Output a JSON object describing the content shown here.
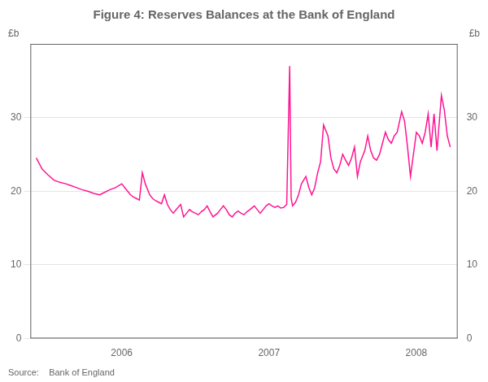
{
  "chart_data": {
    "type": "line",
    "title": "Figure 4: Reserves Balances at the Bank of England",
    "source": "Source:    Bank of England",
    "ylabel": "£b",
    "y2label": "£b",
    "color": "#FF1493",
    "grid": true,
    "xlim": [
      2005.38,
      2008.28
    ],
    "xticks": [
      2006.0,
      2007.0,
      2008.0
    ],
    "ylim": [
      0,
      40
    ],
    "yticks": [
      0,
      10,
      20,
      30
    ],
    "y2lim": [
      0,
      40
    ],
    "y2ticks": [
      0,
      10,
      20,
      30
    ],
    "x": [
      2005.42,
      2005.46,
      2005.5,
      2005.54,
      2005.58,
      2005.62,
      2005.65,
      2005.69,
      2005.73,
      2005.77,
      2005.81,
      2005.85,
      2005.88,
      2005.92,
      2005.96,
      2006.0,
      2006.02,
      2006.04,
      2006.06,
      2006.08,
      2006.1,
      2006.12,
      2006.14,
      2006.16,
      2006.19,
      2006.21,
      2006.23,
      2006.25,
      2006.27,
      2006.29,
      2006.31,
      2006.33,
      2006.35,
      2006.37,
      2006.4,
      2006.42,
      2006.44,
      2006.46,
      2006.48,
      2006.5,
      2006.52,
      2006.54,
      2006.56,
      2006.58,
      2006.6,
      2006.62,
      2006.65,
      2006.67,
      2006.69,
      2006.71,
      2006.73,
      2006.75,
      2006.77,
      2006.79,
      2006.81,
      2006.83,
      2006.85,
      2006.87,
      2006.9,
      2006.92,
      2006.94,
      2006.96,
      2006.98,
      2007.0,
      2007.02,
      2007.04,
      2007.06,
      2007.08,
      2007.1,
      2007.12,
      2007.14,
      2007.15,
      2007.16,
      2007.18,
      2007.2,
      2007.22,
      2007.25,
      2007.27,
      2007.29,
      2007.31,
      2007.33,
      2007.35,
      2007.37,
      2007.4,
      2007.42,
      2007.44,
      2007.46,
      2007.48,
      2007.5,
      2007.52,
      2007.54,
      2007.56,
      2007.58,
      2007.6,
      2007.62,
      2007.65,
      2007.67,
      2007.69,
      2007.71,
      2007.73,
      2007.75,
      2007.77,
      2007.79,
      2007.81,
      2007.83,
      2007.85,
      2007.87,
      2007.9,
      2007.92,
      2007.94,
      2007.96,
      2007.98,
      2008.0,
      2008.02,
      2008.04,
      2008.06,
      2008.08,
      2008.1,
      2008.12,
      2008.14,
      2008.15,
      2008.17,
      2008.19,
      2008.21,
      2008.23
    ],
    "values": [
      24.5,
      23.0,
      22.2,
      21.5,
      21.2,
      21.0,
      20.8,
      20.5,
      20.2,
      20.0,
      19.7,
      19.5,
      19.8,
      20.2,
      20.5,
      21.0,
      20.5,
      20.0,
      19.5,
      19.2,
      19.0,
      18.8,
      22.5,
      21.0,
      19.5,
      19.0,
      18.7,
      18.5,
      18.3,
      19.5,
      18.2,
      17.5,
      17.0,
      17.5,
      18.2,
      16.5,
      17.0,
      17.5,
      17.2,
      17.0,
      16.8,
      17.2,
      17.5,
      18.0,
      17.2,
      16.5,
      17.0,
      17.5,
      18.0,
      17.5,
      16.8,
      16.5,
      17.0,
      17.3,
      17.0,
      16.8,
      17.2,
      17.5,
      18.0,
      17.5,
      17.0,
      17.5,
      18.0,
      18.3,
      18.0,
      17.8,
      18.0,
      17.7,
      17.8,
      18.2,
      37.0,
      19.0,
      18.0,
      18.5,
      19.5,
      21.0,
      22.0,
      20.5,
      19.5,
      20.5,
      22.5,
      24.0,
      29.0,
      27.5,
      24.5,
      23.0,
      22.5,
      23.5,
      25.0,
      24.2,
      23.5,
      24.5,
      26.0,
      22.0,
      24.0,
      25.5,
      27.5,
      25.5,
      24.5,
      24.2,
      25.0,
      26.5,
      28.0,
      27.0,
      26.5,
      27.5,
      28.0,
      30.8,
      29.5,
      26.0,
      22.0,
      25.0,
      28.0,
      27.5,
      26.5,
      28.0,
      30.5,
      26.0,
      30.5,
      25.5,
      28.0,
      33.0,
      31.0,
      27.5,
      26.0
    ]
  }
}
